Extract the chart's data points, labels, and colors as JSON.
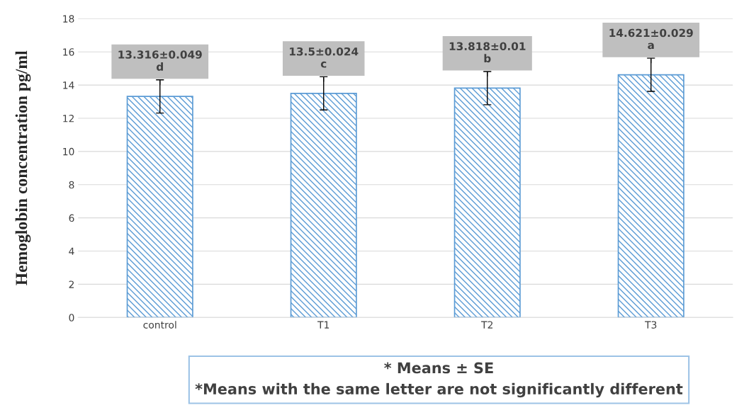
{
  "chart_data": {
    "type": "bar",
    "ylabel": "Hemoglobin concentration pg/ml",
    "categories": [
      "control",
      "T1",
      "T2",
      "T3"
    ],
    "values": [
      13.316,
      13.5,
      13.818,
      14.621
    ],
    "errors": [
      1,
      1,
      1,
      1
    ],
    "value_labels": [
      "13.316±0.049\nd",
      "13.5±0.024\nc",
      "13.818±0.01\nb",
      "14.621±0.029\na"
    ],
    "color": "#5b9bd5",
    "ylim": [
      0,
      18
    ],
    "yticks": [
      0,
      2,
      4,
      6,
      8,
      10,
      12,
      14,
      16,
      18
    ],
    "grid": "y",
    "annotations": [
      "* Means ± SE\n*Means with the same letter are not significantly different"
    ]
  }
}
